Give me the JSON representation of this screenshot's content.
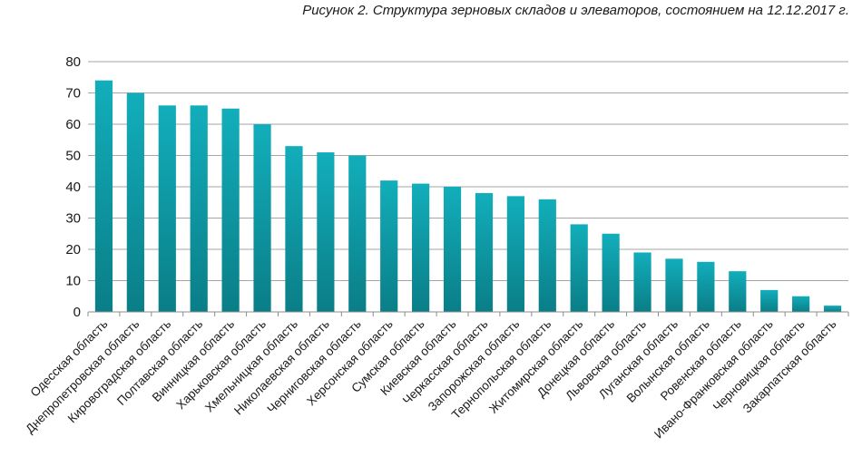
{
  "chart_data": {
    "type": "bar",
    "title": "Рисунок 2. Структура зерновых складов и элеваторов, состоянием на 12.12.2017 г.",
    "xlabel": "",
    "ylabel": "",
    "ylim": [
      0,
      80
    ],
    "yticks": [
      0,
      10,
      20,
      30,
      40,
      50,
      60,
      70,
      80
    ],
    "grid": true,
    "categories": [
      "Одесская область",
      "Днепропетровская область",
      "Кировоградская область",
      "Полтавская область",
      "Винницкая область",
      "Харьковская область",
      "Хмельницкая область",
      "Николаевская область",
      "Черниговская область",
      "Херсонская область",
      "Сумская область",
      "Киевская область",
      "Черкасская область",
      "Запорожская область",
      "Тернопольская область",
      "Житомирская область",
      "Донецкая область",
      "Львовская область",
      "Луганская область",
      "Волынская область",
      "Ровенская область",
      "Ивано-Франковская область",
      "Черновицкая область",
      "Закарпатская область"
    ],
    "values": [
      74,
      70,
      66,
      66,
      65,
      60,
      53,
      51,
      50,
      42,
      41,
      40,
      38,
      37,
      36,
      28,
      25,
      19,
      17,
      16,
      13,
      7,
      5,
      2
    ],
    "colors": {
      "bar_top": "#12AEBB",
      "bar_bottom": "#0A7E87",
      "grid": "#a6a6a6",
      "axis": "#8c8c8c"
    }
  }
}
